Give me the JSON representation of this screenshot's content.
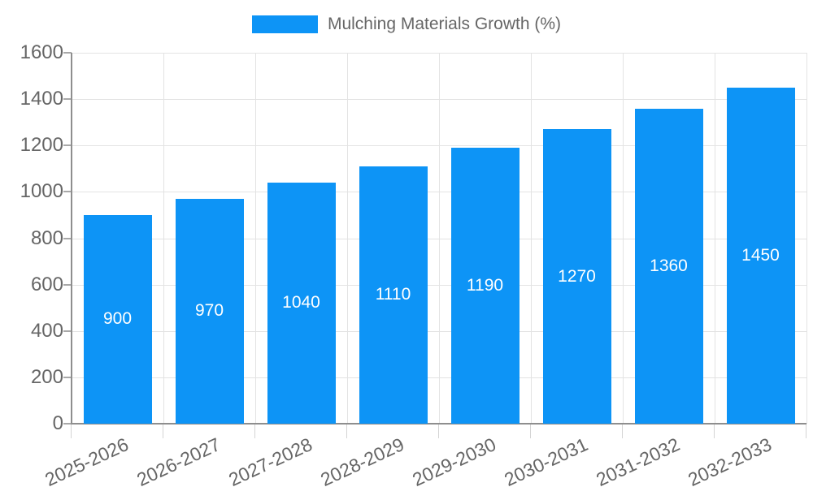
{
  "chart_data": {
    "type": "bar",
    "title": "Mulching Materials Growth (%)",
    "legend_label": "Mulching Materials Growth (%)",
    "legend_position": "top",
    "categories": [
      "2025-2026",
      "2026-2027",
      "2027-2028",
      "2028-2029",
      "2029-2030",
      "2030-2031",
      "2031-2032",
      "2032-2033"
    ],
    "values": [
      900,
      970,
      1040,
      1110,
      1190,
      1270,
      1360,
      1450
    ],
    "xlabel": "",
    "ylabel": "",
    "ylim": [
      0,
      1600
    ],
    "ytick_step": 200,
    "yticks": [
      0,
      200,
      400,
      600,
      800,
      1000,
      1200,
      1400,
      1600
    ],
    "grid": true,
    "x_label_rotation_deg": -25,
    "colors": {
      "bar": "#0d94f6",
      "value_label": "#ffffff",
      "tick_text": "#666666",
      "gridline": "#e3e3e3",
      "axis_line": "#8e8e8e",
      "background": "#ffffff"
    }
  }
}
